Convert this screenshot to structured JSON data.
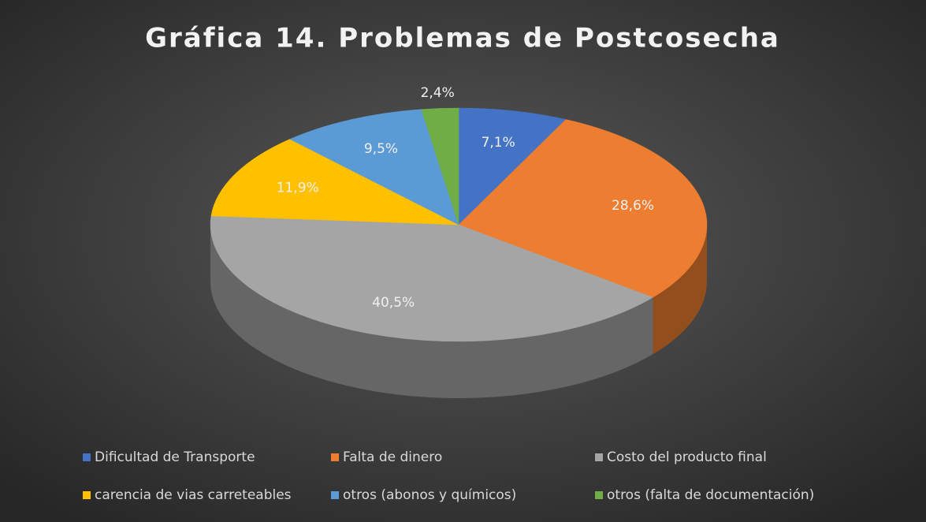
{
  "chart_data": {
    "type": "pie",
    "title": "Gráfica 14. Problemas de Postcosecha",
    "categories": [
      "Dificultad de Transporte",
      "Falta de dinero",
      "Costo del producto final",
      "carencia de vias carreteables",
      "otros (abonos y químicos)",
      "otros (falta de documentación)"
    ],
    "values": [
      7.1,
      28.6,
      40.5,
      11.9,
      9.5,
      2.4
    ],
    "value_labels": [
      "7,1%",
      "28,6%",
      "40,5%",
      "11,9%",
      "9,5%",
      "2,4%"
    ],
    "colors": [
      "#4472c4",
      "#ed7d31",
      "#a5a5a5",
      "#ffc000",
      "#5b9bd5",
      "#70ad47"
    ],
    "legend": "bottom"
  }
}
